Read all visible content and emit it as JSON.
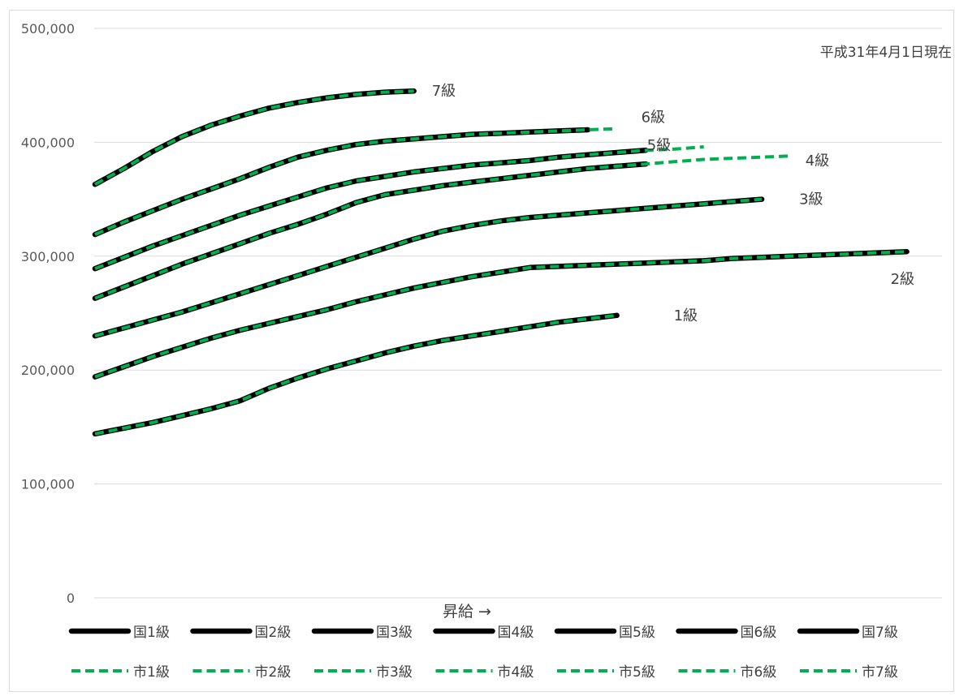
{
  "chart_data": {
    "type": "line",
    "annotation": "平成31年4月1日現在",
    "xlabel": "昇給 →",
    "ylabel": "",
    "ylim": [
      0,
      500000
    ],
    "yticks": [
      0,
      100000,
      200000,
      300000,
      400000,
      500000
    ],
    "ytick_labels": [
      "0",
      "100,000",
      "200,000",
      "300,000",
      "400,000",
      "500,000"
    ],
    "grid": true,
    "legend_position": "bottom",
    "colors": {
      "national": "#000000",
      "city": "#00b050"
    },
    "grade_labels": [
      "1級",
      "2級",
      "3級",
      "4級",
      "5級",
      "6級",
      "7級"
    ],
    "series": [
      {
        "name": "国1級",
        "group": "national",
        "grade": 1,
        "values": [
          144000,
          149000,
          154000,
          160000,
          166000,
          173000,
          184000,
          193000,
          201000,
          208000,
          215000,
          221000,
          226000,
          230000,
          234000,
          238000,
          242000,
          245000,
          248000
        ]
      },
      {
        "name": "国2級",
        "group": "national",
        "grade": 2,
        "values": [
          194000,
          203000,
          212000,
          220000,
          228000,
          235000,
          241000,
          247000,
          253000,
          260000,
          266000,
          272000,
          277000,
          282000,
          286000,
          290000,
          291000,
          292000,
          293000,
          294000,
          295000,
          296000,
          298000,
          299000,
          300000,
          301000,
          302000,
          303000,
          304000
        ]
      },
      {
        "name": "国3級",
        "group": "national",
        "grade": 3,
        "values": [
          230000,
          237000,
          244000,
          251000,
          259000,
          267000,
          275000,
          283000,
          291000,
          299000,
          307000,
          315000,
          322000,
          327000,
          331000,
          334000,
          336000,
          338000,
          340000,
          342000,
          344000,
          346000,
          348000,
          350000
        ]
      },
      {
        "name": "国4級",
        "group": "national",
        "grade": 4,
        "values": [
          263000,
          273000,
          283000,
          293000,
          302000,
          311000,
          320000,
          328000,
          337000,
          347000,
          354000,
          358000,
          362000,
          365000,
          368000,
          371000,
          374000,
          377000,
          379000,
          381000
        ]
      },
      {
        "name": "国5級",
        "group": "national",
        "grade": 5,
        "values": [
          289000,
          299000,
          309000,
          318000,
          327000,
          336000,
          344000,
          352000,
          360000,
          366000,
          370000,
          374000,
          377000,
          380000,
          382000,
          384000,
          387000,
          389000,
          391000,
          393000
        ]
      },
      {
        "name": "国6級",
        "group": "national",
        "grade": 6,
        "values": [
          319000,
          330000,
          340000,
          350000,
          359000,
          368000,
          378000,
          387000,
          393000,
          398000,
          401000,
          403000,
          405000,
          407000,
          408000,
          409000,
          410000,
          411000
        ]
      },
      {
        "name": "国7級",
        "group": "national",
        "grade": 7,
        "values": [
          363000,
          377000,
          392000,
          405000,
          415000,
          423000,
          430000,
          435000,
          439000,
          442000,
          444000,
          445000
        ]
      },
      {
        "name": "市1級",
        "group": "city",
        "grade": 1,
        "values": [
          144000,
          149000,
          154000,
          160000,
          166000,
          173000,
          184000,
          193000,
          201000,
          208000,
          215000,
          221000,
          226000,
          230000,
          234000,
          238000,
          242000,
          245000,
          248000
        ]
      },
      {
        "name": "市2級",
        "group": "city",
        "grade": 2,
        "values": [
          194000,
          203000,
          212000,
          220000,
          228000,
          235000,
          241000,
          247000,
          253000,
          260000,
          266000,
          272000,
          277000,
          282000,
          286000,
          290000,
          291000,
          292000,
          293000,
          294000,
          295000,
          296000,
          298000,
          299000,
          300000,
          301000,
          302000,
          303000,
          304000
        ]
      },
      {
        "name": "市3級",
        "group": "city",
        "grade": 3,
        "values": [
          230000,
          237000,
          244000,
          251000,
          259000,
          267000,
          275000,
          283000,
          291000,
          299000,
          307000,
          315000,
          322000,
          327000,
          331000,
          334000,
          336000,
          338000,
          340000,
          342000,
          344000,
          346000,
          348000,
          350000
        ]
      },
      {
        "name": "市4級",
        "group": "city",
        "grade": 4,
        "values": [
          263000,
          273000,
          283000,
          293000,
          302000,
          311000,
          320000,
          328000,
          337000,
          347000,
          354000,
          358000,
          362000,
          365000,
          368000,
          371000,
          374000,
          377000,
          379000,
          381000,
          383000,
          385000,
          386000,
          387000,
          388000
        ]
      },
      {
        "name": "市5級",
        "group": "city",
        "grade": 5,
        "values": [
          289000,
          299000,
          309000,
          318000,
          327000,
          336000,
          344000,
          352000,
          360000,
          366000,
          370000,
          374000,
          377000,
          380000,
          382000,
          384000,
          387000,
          389000,
          391000,
          393000,
          394000,
          396000
        ]
      },
      {
        "name": "市6級",
        "group": "city",
        "grade": 6,
        "values": [
          319000,
          330000,
          340000,
          350000,
          359000,
          368000,
          378000,
          387000,
          393000,
          398000,
          401000,
          403000,
          405000,
          407000,
          408000,
          409000,
          410000,
          411000,
          412000
        ]
      },
      {
        "name": "市7級",
        "group": "city",
        "grade": 7,
        "values": [
          363000,
          377000,
          392000,
          405000,
          415000,
          423000,
          430000,
          435000,
          439000,
          442000,
          444000,
          445000
        ]
      }
    ]
  }
}
